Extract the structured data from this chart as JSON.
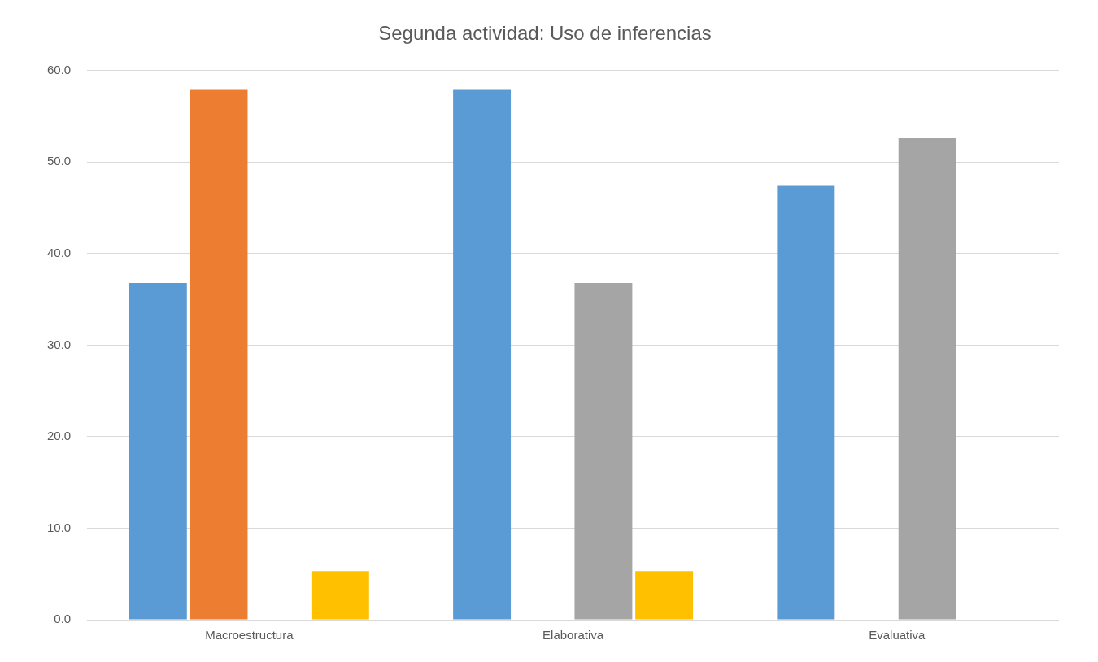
{
  "chart_data": {
    "type": "bar",
    "title": "Segunda actividad: Uso de inferencias",
    "categories": [
      "Macroestructura",
      "Elaborativa",
      "Evaluativa"
    ],
    "series": [
      {
        "color": "#5b9bd5",
        "values": [
          36.8,
          57.9,
          47.4
        ]
      },
      {
        "color": "#ed7d31",
        "values": [
          57.9,
          0,
          0
        ]
      },
      {
        "color": "#a5a5a5",
        "values": [
          0,
          36.8,
          52.6
        ]
      },
      {
        "color": "#ffc000",
        "values": [
          5.3,
          5.3,
          0
        ]
      }
    ],
    "ylim": [
      0,
      60
    ],
    "yticks": [
      {
        "value": 0,
        "label": "0.0"
      },
      {
        "value": 10,
        "label": "10.0"
      },
      {
        "value": 20,
        "label": "20.0"
      },
      {
        "value": 30,
        "label": "30.0"
      },
      {
        "value": 40,
        "label": "40.0"
      },
      {
        "value": 50,
        "label": "50.0"
      },
      {
        "value": 60,
        "label": "60.0"
      }
    ],
    "grid": "y",
    "legend": false
  }
}
